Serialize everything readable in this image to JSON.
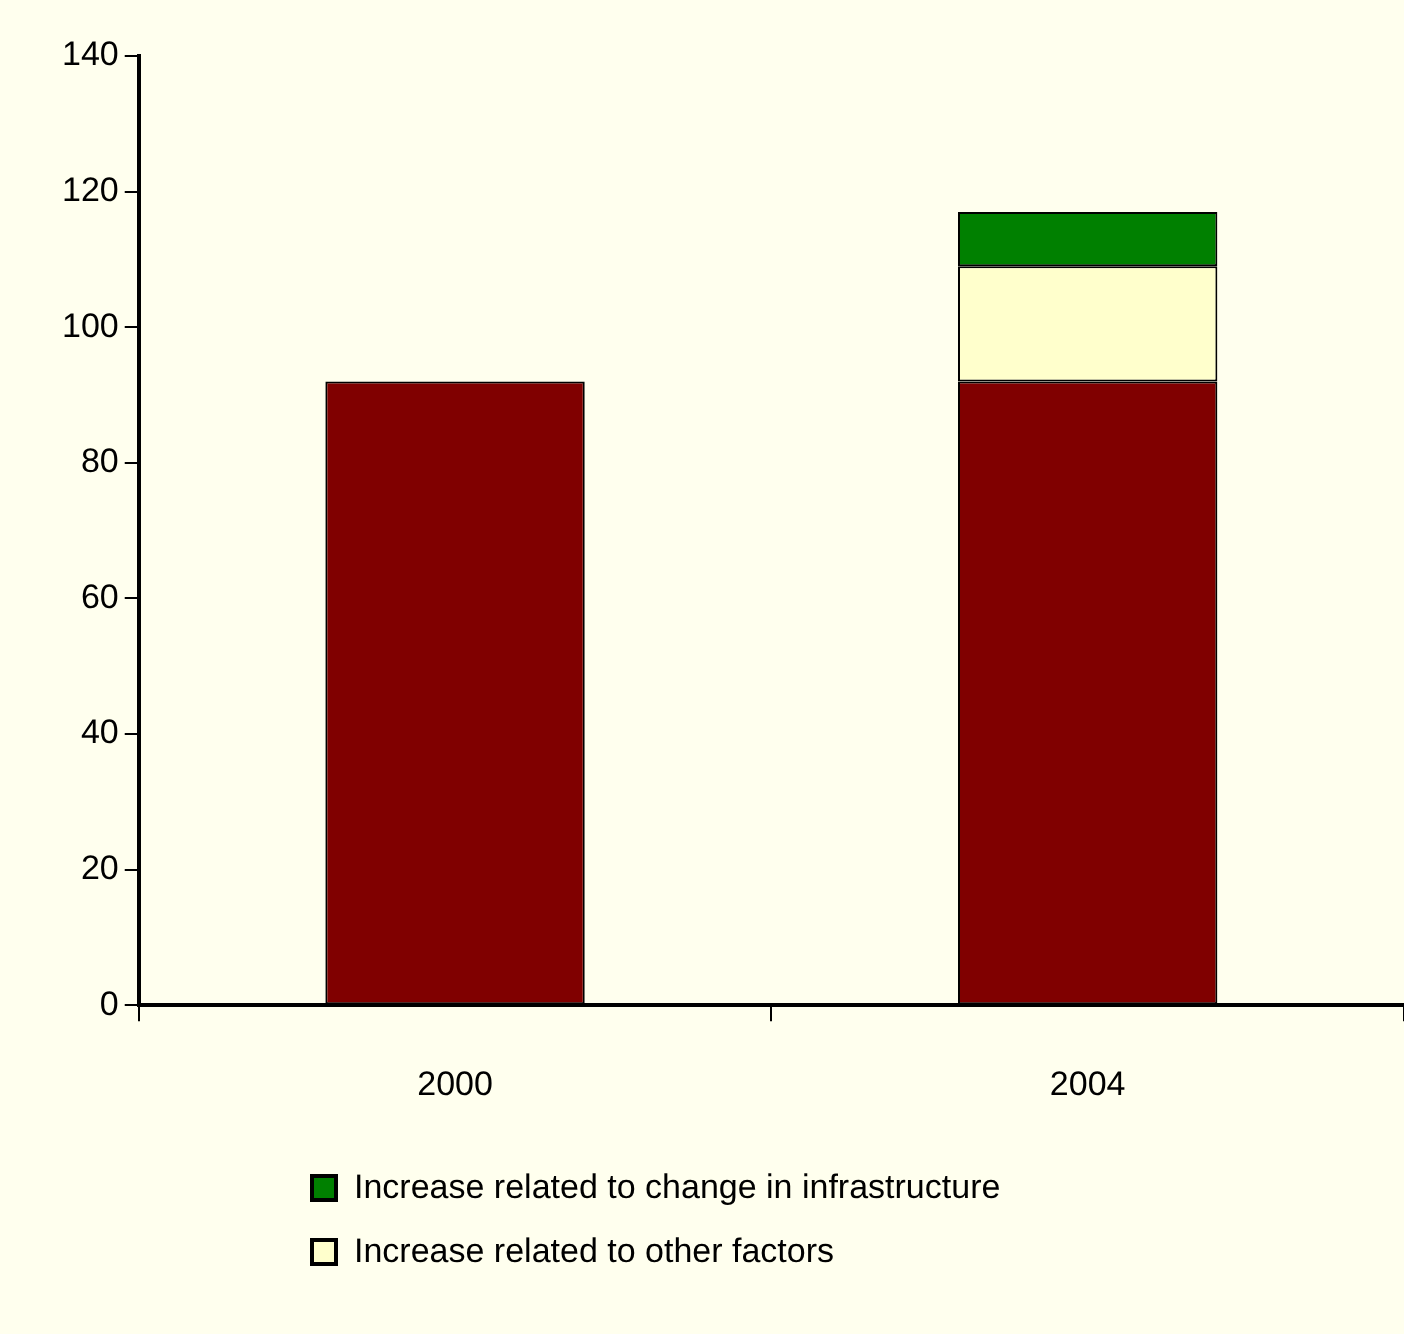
{
  "chart_data": {
    "type": "bar",
    "stacked": true,
    "categories": [
      "2000",
      "2004"
    ],
    "series": [
      {
        "color": "#800000",
        "values": [
          92,
          92
        ]
      },
      {
        "name": "Increase related to other factors",
        "color": "#ffffcc",
        "values": [
          null,
          17
        ]
      },
      {
        "name": "Increase related to change in infrastructure",
        "color": "#008000",
        "values": [
          null,
          8
        ]
      }
    ],
    "ylim": [
      0,
      140
    ],
    "yticks": [
      0,
      20,
      40,
      60,
      80,
      100,
      120,
      140
    ],
    "grid": false,
    "legend": "bottom"
  }
}
